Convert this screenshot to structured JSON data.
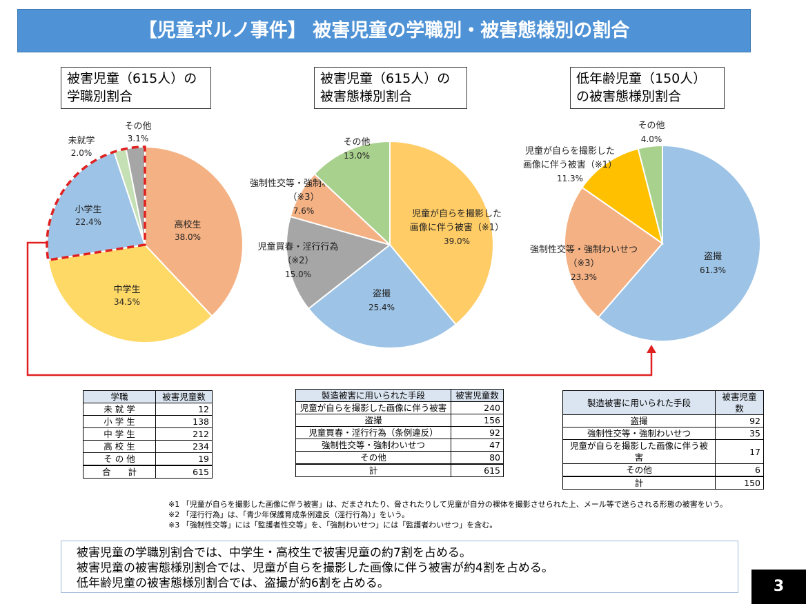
{
  "header": {
    "title": "【児童ポルノ事件】 被害児童の学職別・被害態様別の割合"
  },
  "chart_data": [
    {
      "type": "pie",
      "title_lines": [
        "被害児童（615人）の",
        "学職別割合"
      ],
      "slices": [
        {
          "label": "高校生",
          "value": 38.0,
          "pct_text": "38.0%",
          "color": "#f4b183"
        },
        {
          "label": "中学生",
          "value": 34.5,
          "pct_text": "34.5%",
          "color": "#ffd966"
        },
        {
          "label": "小学生",
          "value": 22.4,
          "pct_text": "22.4%",
          "color": "#9dc3e6"
        },
        {
          "label": "未就学",
          "value": 2.0,
          "pct_text": "2.0%",
          "color": "#c5e0b4"
        },
        {
          "label": "その他",
          "value": 3.1,
          "pct_text": "3.1%",
          "color": "#a6a6a6"
        }
      ]
    },
    {
      "type": "pie",
      "title_lines": [
        "被害児童（615人）の",
        "被害態様別割合"
      ],
      "slices": [
        {
          "label": "児童が自らを撮影した画像に伴う被害（※1）",
          "label_lines": [
            "児童が自らを撮影した",
            "画像に伴う被害（※1）"
          ],
          "value": 39.0,
          "pct_text": "39.0%",
          "color": "#ffcc66"
        },
        {
          "label": "盗撮",
          "label_lines": [
            "盗撮"
          ],
          "value": 25.4,
          "pct_text": "25.4%",
          "color": "#9dc3e6"
        },
        {
          "label": "児童買春・淫行行為（※2）",
          "label_lines": [
            "児童買春・淫行行為",
            "（※2）"
          ],
          "value": 15.0,
          "pct_text": "15.0%",
          "color": "#a6a6a6"
        },
        {
          "label": "強制性交等・強制わいせつ（※3）",
          "label_lines": [
            "強制性交等・強制わいせつ",
            "（※3）"
          ],
          "value": 7.6,
          "pct_text": "7.6%",
          "color": "#f4b183"
        },
        {
          "label": "その他",
          "label_lines": [
            "その他"
          ],
          "value": 13.0,
          "pct_text": "13.0%",
          "color": "#a9d18e"
        }
      ]
    },
    {
      "type": "pie",
      "title_lines": [
        "低年齢児童（150人）",
        "の被害態様別割合"
      ],
      "slices": [
        {
          "label": "盗撮",
          "label_lines": [
            "盗撮"
          ],
          "value": 61.3,
          "pct_text": "61.3%",
          "color": "#9dc3e6"
        },
        {
          "label": "強制性交等・強制わいせつ（※3）",
          "label_lines": [
            "強制性交等・強制わいせつ",
            "（※3）"
          ],
          "value": 23.3,
          "pct_text": "23.3%",
          "color": "#f4b183"
        },
        {
          "label": "児童が自らを撮影した画像に伴う被害（※1）",
          "label_lines": [
            "児童が自らを撮影した",
            "画像に伴う被害（※1）"
          ],
          "value": 11.3,
          "pct_text": "11.3%",
          "color": "#ffc000"
        },
        {
          "label": "その他",
          "label_lines": [
            "その他"
          ],
          "value": 4.0,
          "pct_text": "4.0%",
          "color": "#a9d18e"
        }
      ]
    }
  ],
  "tables": [
    {
      "headers": [
        "学職",
        "被害児童数"
      ],
      "rows": [
        [
          "未 就 学",
          "12"
        ],
        [
          "小 学 生",
          "138"
        ],
        [
          "中 学 生",
          "212"
        ],
        [
          "高 校 生",
          "234"
        ],
        [
          "そ の 他",
          "19"
        ]
      ],
      "total": [
        "合　　計",
        "615"
      ]
    },
    {
      "headers": [
        "製造被害に用いられた手段",
        "被害児童数"
      ],
      "rows": [
        [
          "児童が自らを撮影した画像に伴う被害",
          "240"
        ],
        [
          "盗撮",
          "156"
        ],
        [
          "児童買春・淫行行為（条例違反）",
          "92"
        ],
        [
          "強制性交等・強制わいせつ",
          "47"
        ],
        [
          "その他",
          "80"
        ]
      ],
      "total": [
        "計",
        "615"
      ]
    },
    {
      "headers": [
        "製造被害に用いられた手段",
        "被害児童数"
      ],
      "rows": [
        [
          "盗撮",
          "92"
        ],
        [
          "強制性交等・強制わいせつ",
          "35"
        ],
        [
          "児童が自らを撮影した画像に伴う被害",
          "17"
        ],
        [
          "その他",
          "6"
        ]
      ],
      "total": [
        "計",
        "150"
      ]
    }
  ],
  "notes": [
    "※1 「児童が自らを撮影した画像に伴う被害」は、だまされたり、脅されたりして児童が自分の裸体を撮影させられた上、メール等で送らされる形態の被害をいう。",
    "※2 「淫行行為」は、「青少年保護育成条例違反（淫行行為）」をいう。",
    "※3 「強制性交等」には「監護者性交等」を、「強制わいせつ」には「監護者わいせつ」を含む。"
  ],
  "summary": [
    "被害児童の学職別割合では、中学生・高校生で被害児童の約7割を占める。",
    "被害児童の被害態様別割合では、児童が自らを撮影した画像に伴う被害が約4割を占める。",
    "低年齢児童の被害態様別割合では、盗撮が約6割を占める。"
  ],
  "page_number": "3",
  "colors": {
    "header_bg": "#4f93d6",
    "highlight": "#e02020"
  }
}
